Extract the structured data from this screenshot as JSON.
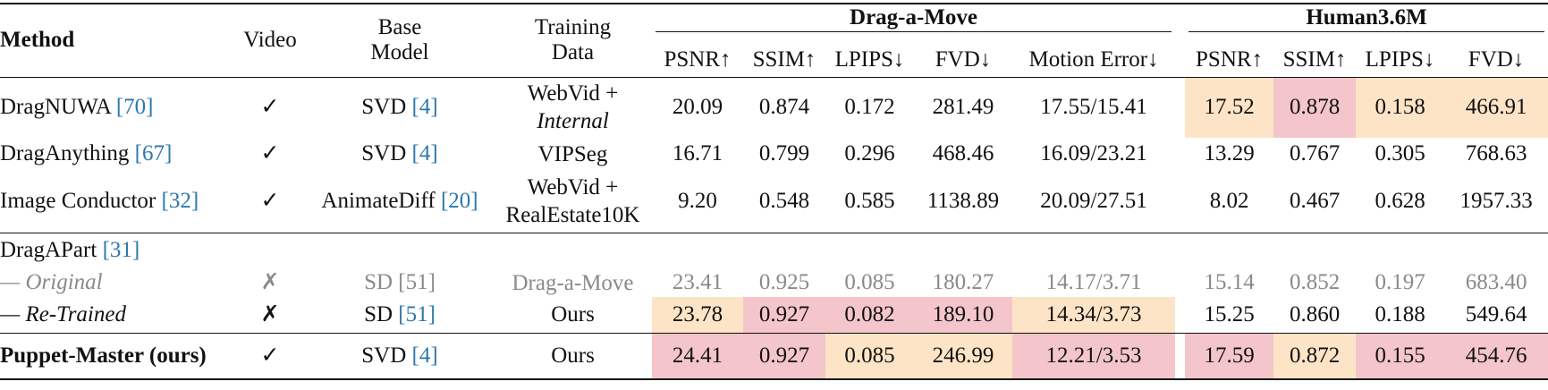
{
  "header": {
    "method": "Method",
    "video": "Video",
    "base_model": [
      "Base",
      "Model"
    ],
    "training_data": [
      "Training",
      "Data"
    ],
    "groups": [
      {
        "title": "Drag-a-Move",
        "metrics": [
          "PSNR↑",
          "SSIM↑",
          "LPIPS↓",
          "FVD↓",
          "Motion Error↓"
        ]
      },
      {
        "title": "Human3.6M",
        "metrics": [
          "PSNR↑",
          "SSIM↑",
          "LPIPS↓",
          "FVD↓"
        ]
      }
    ]
  },
  "rows": [
    {
      "method": "DragNUWA",
      "ref": "[70]",
      "video": "✓",
      "base": "SVD",
      "base_ref": "[4]",
      "training": [
        "WebVid +",
        "Internal"
      ],
      "drag_a_move": [
        "20.09",
        "0.874",
        "0.172",
        "281.49",
        "17.55/15.41"
      ],
      "human36m": [
        "17.52",
        "0.878",
        "0.158",
        "466.91"
      ]
    },
    {
      "method": "DragAnything",
      "ref": "[67]",
      "video": "✓",
      "base": "SVD",
      "base_ref": "[4]",
      "training": [
        "VIPSeg"
      ],
      "drag_a_move": [
        "16.71",
        "0.799",
        "0.296",
        "468.46",
        "16.09/23.21"
      ],
      "human36m": [
        "13.29",
        "0.767",
        "0.305",
        "768.63"
      ]
    },
    {
      "method": "Image Conductor",
      "ref": "[32]",
      "video": "✓",
      "base": "AnimateDiff",
      "base_ref": "[20]",
      "training": [
        "WebVid +",
        "RealEstate10K"
      ],
      "drag_a_move": [
        "9.20",
        "0.548",
        "0.585",
        "1138.89",
        "20.09/27.51"
      ],
      "human36m": [
        "8.02",
        "0.467",
        "0.628",
        "1957.33"
      ]
    },
    {
      "method": "DragAPart",
      "ref": "[31]"
    },
    {
      "method": "— Original",
      "video": "✗",
      "base": "SD",
      "base_ref": "[51]",
      "training": [
        "Drag-a-Move"
      ],
      "drag_a_move": [
        "23.41",
        "0.925",
        "0.085",
        "180.27",
        "14.17/3.71"
      ],
      "human36m": [
        "15.14",
        "0.852",
        "0.197",
        "683.40"
      ]
    },
    {
      "method": "— Re-Trained",
      "video": "✗",
      "base": "SD",
      "base_ref": "[51]",
      "training": [
        "Ours"
      ],
      "drag_a_move": [
        "23.78",
        "0.927",
        "0.082",
        "189.10",
        "14.34/3.73"
      ],
      "human36m": [
        "15.25",
        "0.860",
        "0.188",
        "549.64"
      ]
    },
    {
      "method": "Puppet-Master (ours)",
      "video": "✓",
      "base": "SVD",
      "base_ref": "[4]",
      "training": [
        "Ours"
      ],
      "drag_a_move": [
        "24.41",
        "0.927",
        "0.085",
        "246.99",
        "12.21/3.53"
      ],
      "human36m": [
        "17.59",
        "0.872",
        "0.155",
        "454.76"
      ]
    }
  ]
}
